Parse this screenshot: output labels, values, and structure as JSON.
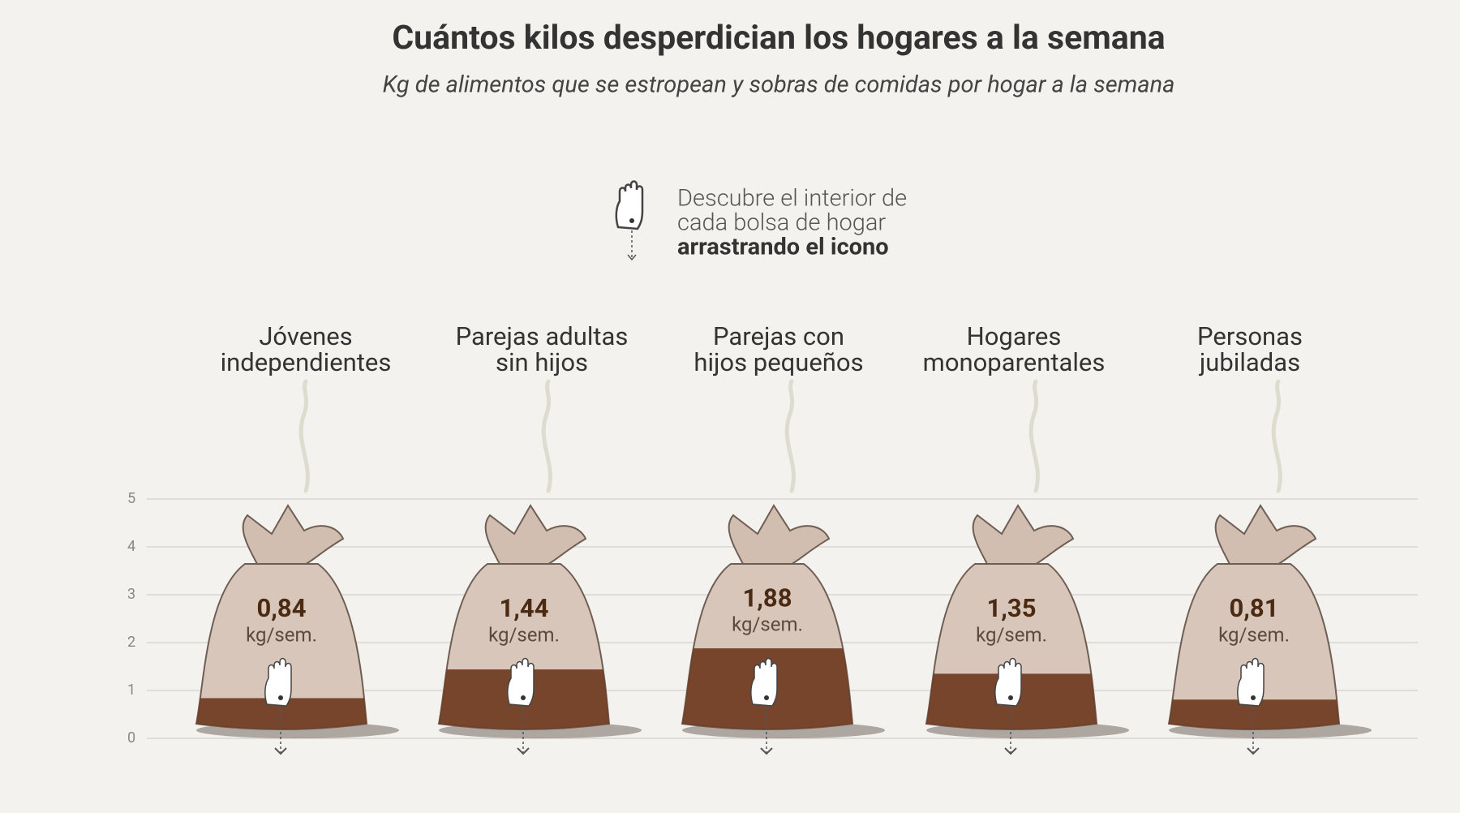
{
  "chart_data": {
    "type": "bag",
    "title": "Cuántos kilos desperdician los hogares a la semana",
    "subtitle": "Kg de alimentos que se estropean y sobras de comidas por hogar a la semana",
    "instructions": [
      "Descubre el interior de",
      "cada bolsa de hogar",
      "arrastrando el icono"
    ],
    "categories": [
      "Jóvenes\nindependientes",
      "Parejas adultas\nsin hijos",
      "Parejas con\nhijos pequeños",
      "Hogares\nmonoparentales",
      "Personas\njubiladas"
    ],
    "values": [
      0.84,
      1.44,
      1.88,
      1.35,
      0.81
    ],
    "value_labels": [
      "0,84",
      "1,44",
      "1,88",
      "1,35",
      "0,81"
    ],
    "unit": "kg/sem.",
    "color": "#6e3a20",
    "ylim": [
      0,
      5
    ],
    "yticks": [
      0,
      1,
      2,
      3,
      4,
      5
    ],
    "grid": true
  }
}
